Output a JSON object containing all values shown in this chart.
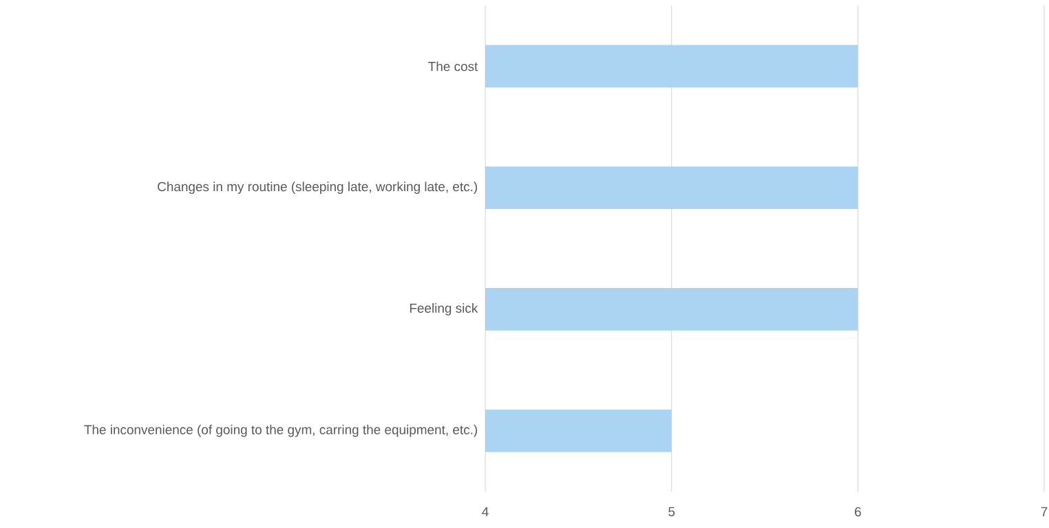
{
  "chart_data": {
    "type": "bar",
    "orientation": "horizontal",
    "categories": [
      "The cost",
      "Changes in my routine (sleeping late, working late, etc.)",
      "Feeling sick",
      "The inconvenience (of going to the gym, carring the equipment, etc.)"
    ],
    "values": [
      6,
      6,
      6,
      5
    ],
    "color": "#aad4f2",
    "xlim": [
      4,
      7
    ],
    "xticks": [
      4,
      5,
      6,
      7
    ],
    "grid": "x"
  }
}
